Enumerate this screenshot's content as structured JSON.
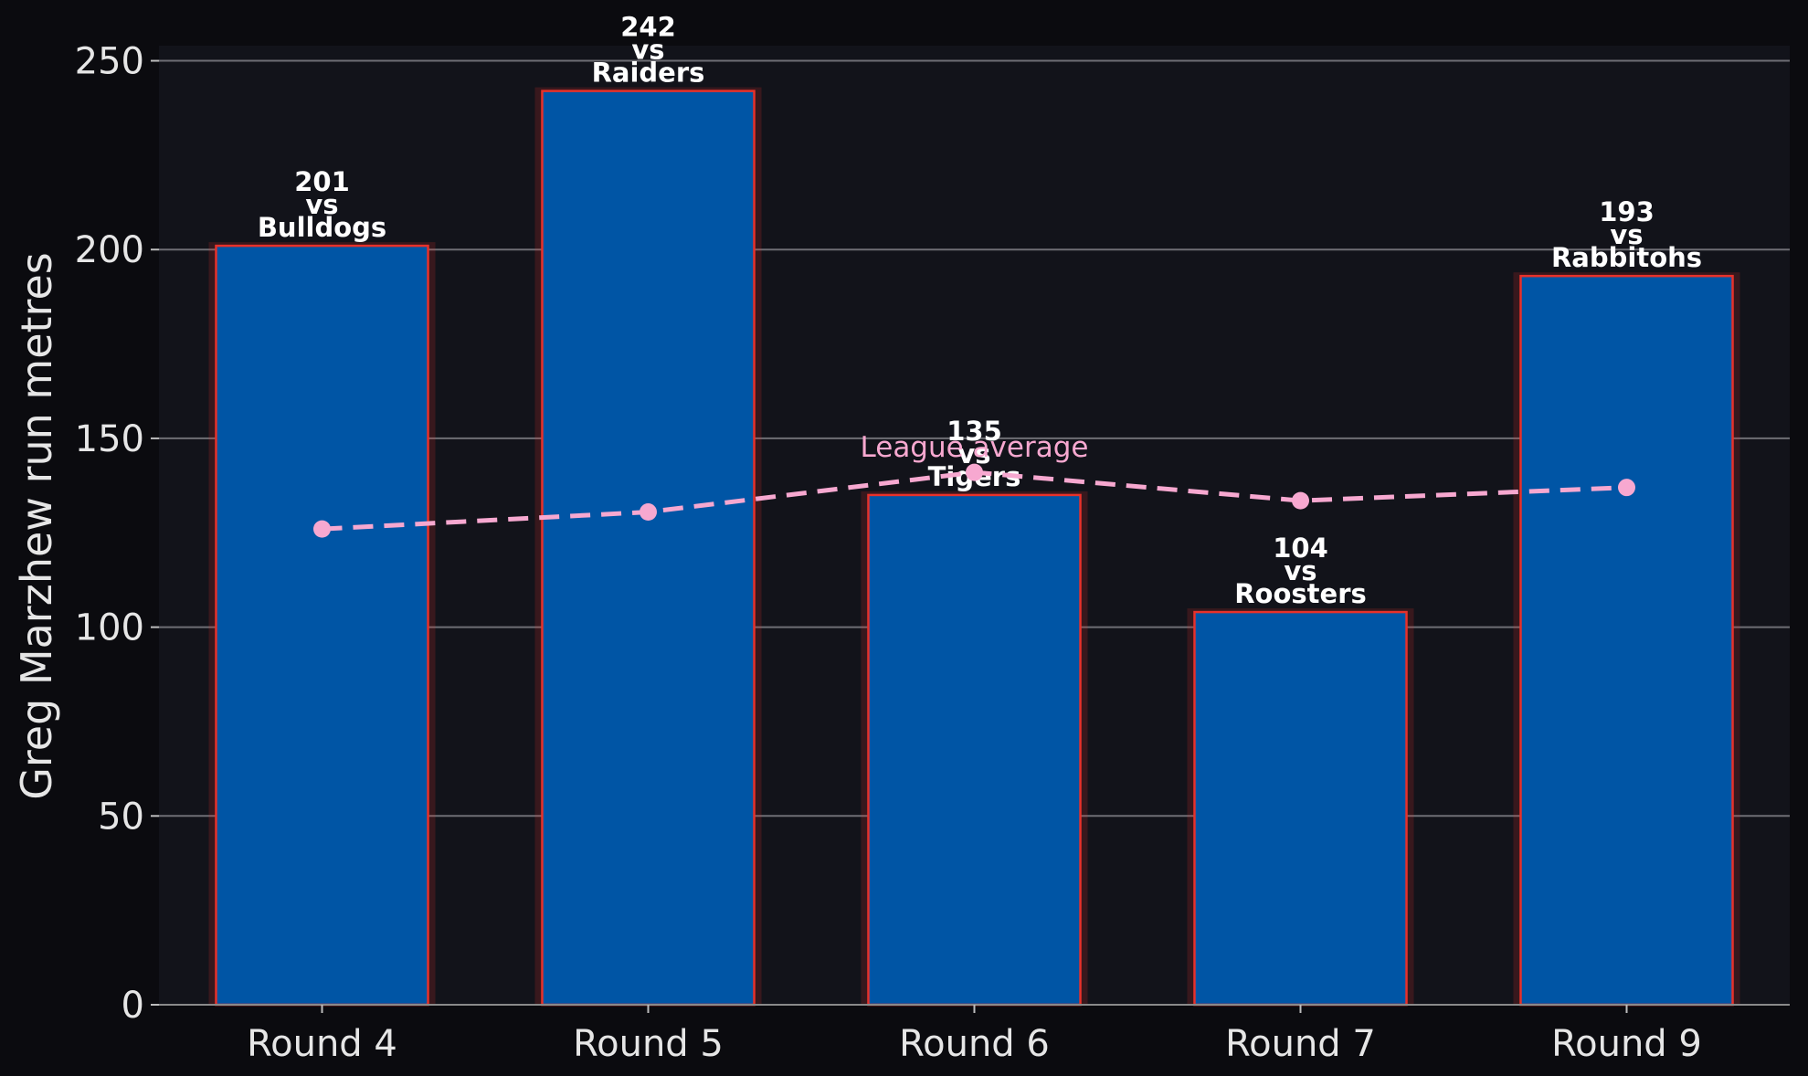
{
  "chart_data": {
    "type": "bar",
    "title": "",
    "xlabel": "",
    "ylabel": "Greg Marzhew run metres",
    "ylim": [
      0,
      254
    ],
    "yticks": [
      0,
      50,
      100,
      150,
      200,
      250
    ],
    "grid": "horizontal",
    "categories": [
      "Round 4",
      "Round 5",
      "Round 6",
      "Round 7",
      "Round 9"
    ],
    "series": [
      {
        "type": "bar",
        "values": [
          201,
          242,
          135,
          104,
          193
        ],
        "color": "#0055a5",
        "edge_color": "#e8312a"
      },
      {
        "type": "line",
        "values": [
          126,
          130.5,
          141,
          133.5,
          137
        ],
        "color": "#f7a8d0",
        "style": "dashed"
      }
    ],
    "bar_labels": [
      {
        "value": "201",
        "sep": "vs",
        "opponent": "Bulldogs"
      },
      {
        "value": "242",
        "sep": "vs",
        "opponent": "Raiders"
      },
      {
        "value": "135",
        "sep": "vs",
        "opponent": "Tigers"
      },
      {
        "value": "104",
        "sep": "vs",
        "opponent": "Roosters"
      },
      {
        "value": "193",
        "sep": "vs",
        "opponent": "Rabbitohs"
      }
    ],
    "annotations": [
      {
        "text": "League average",
        "color": "#f7a8d0",
        "at_category": "Round 6"
      }
    ]
  }
}
